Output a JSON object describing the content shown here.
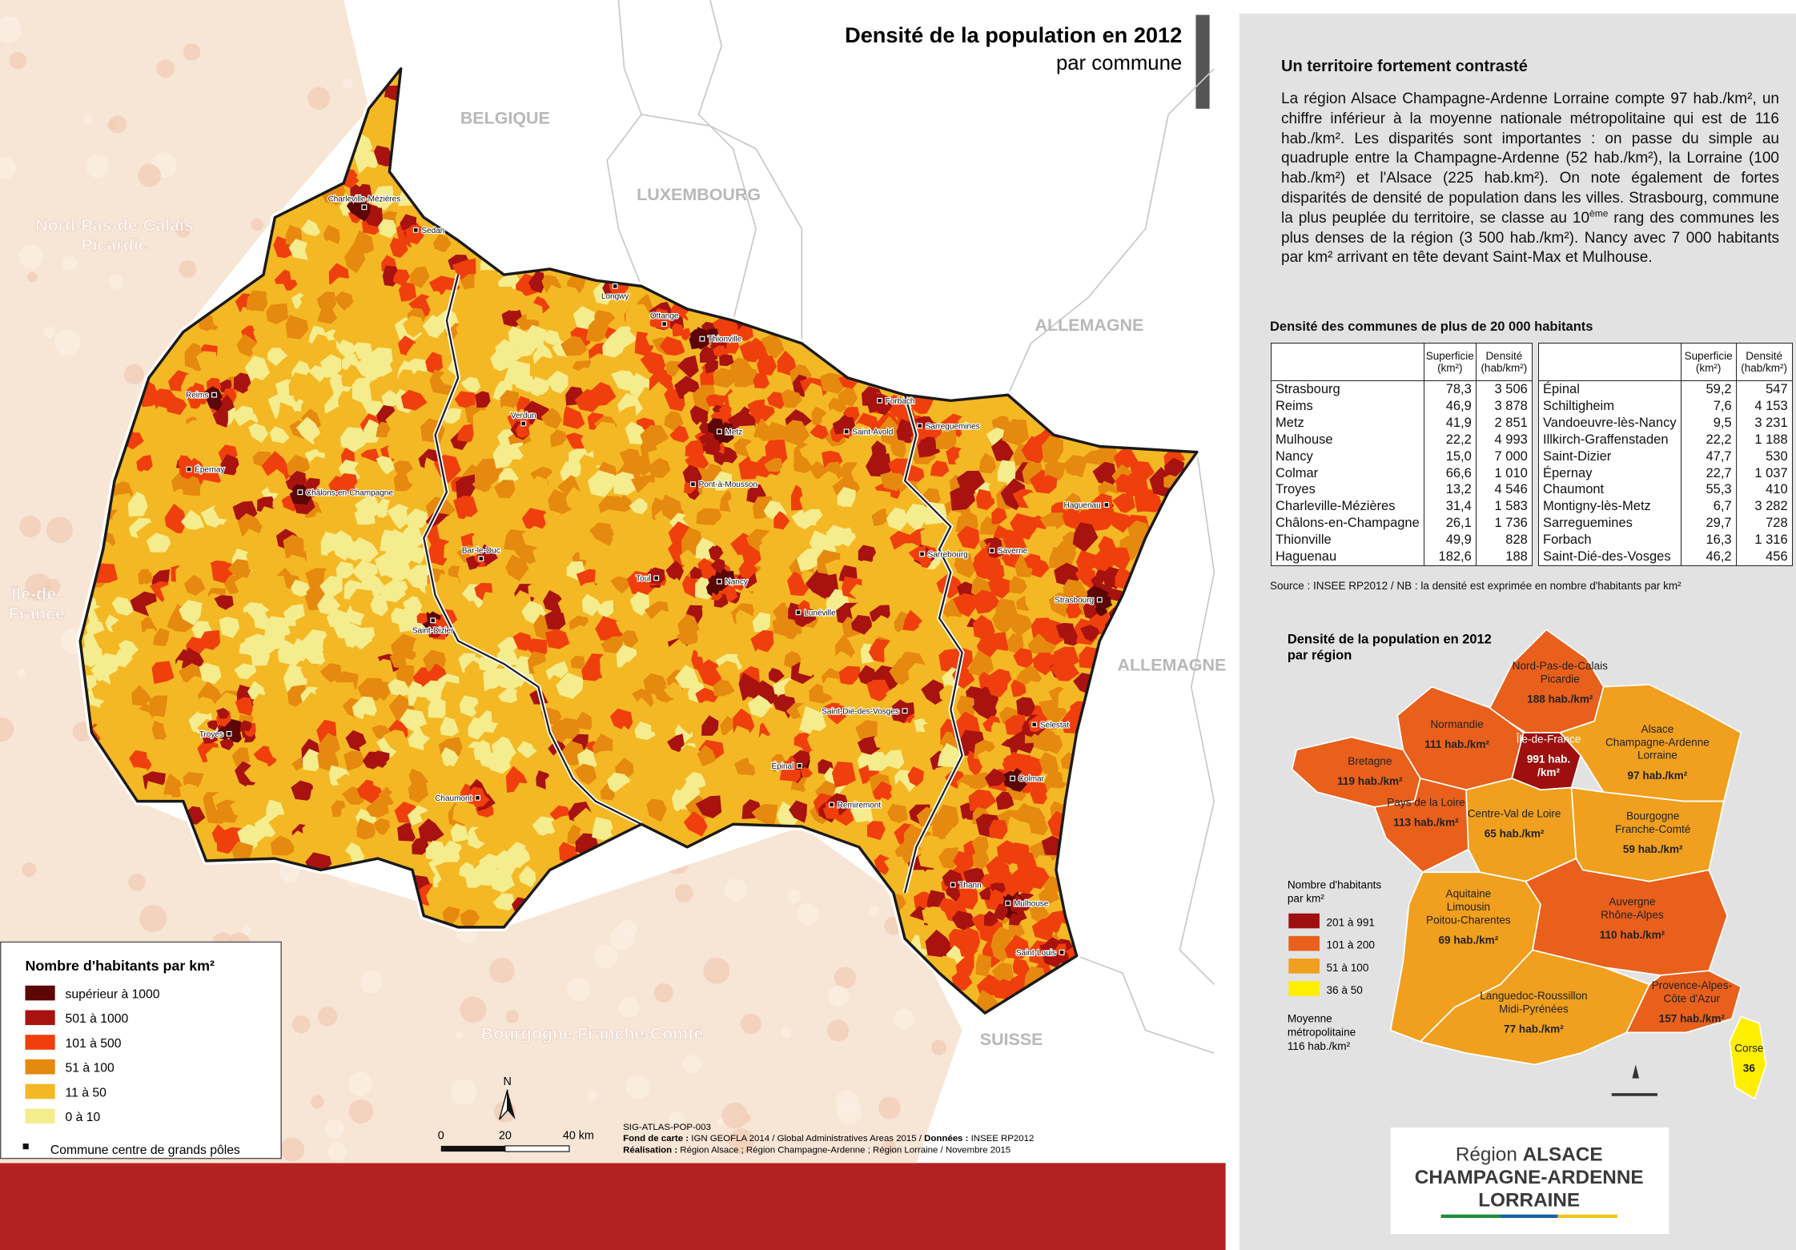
{
  "header": {
    "title": "Densité de la population en 2012",
    "subtitle": "par commune"
  },
  "map": {
    "places": [
      "BELGIQUE",
      "LUXEMBOURG",
      "ALLEMAGNE",
      "ALLEMAGNE",
      "SUISSE"
    ],
    "regions": [
      [
        "Nord-Pas-de-Calais",
        "Picardie"
      ],
      [
        "Île-de-",
        "France"
      ],
      [
        "Bourgogne Franche-Comté"
      ]
    ],
    "cities": [
      "Charleville-Mézières",
      "Sedan",
      "Longwy",
      "Ottange",
      "Thionville",
      "Reims",
      "Verdun",
      "Forbach",
      "Saint-Avold",
      "Sarreguemines",
      "Metz",
      "Épernay",
      "Châlons-en-Champagne",
      "Pont-à-Mousson",
      "Haguenau",
      "Bar-le-Duc",
      "Saverne",
      "Sarrebourg",
      "Toul",
      "Nancy",
      "Strasbourg",
      "Lunéville",
      "Saint-Dizier",
      "Saint-Dié-des-Vosges",
      "Sélestat",
      "Troyes",
      "Épinal",
      "Colmar",
      "Chaumont",
      "Remiremont",
      "Thann",
      "Mulhouse",
      "Saint-Louis"
    ],
    "legend": {
      "title": "Nombre d'habitants par km²",
      "items": [
        {
          "label": "supérieur à 1000",
          "color": "#5c0606"
        },
        {
          "label": "501  à  1000",
          "color": "#a8120f"
        },
        {
          "label": "101  à  500",
          "color": "#ef3f0c"
        },
        {
          "label": "51  à  100",
          "color": "#e6890f"
        },
        {
          "label": "11  à  50",
          "color": "#f4b824"
        },
        {
          "label": "0  à  10",
          "color": "#f5ec8e"
        }
      ],
      "pole": "Commune centre de grands pôles"
    },
    "scale": {
      "ticks": [
        0,
        20,
        "40 km"
      ],
      "north": "N"
    },
    "credits": {
      "code": "SIG-ATLAS-POP-003",
      "fond_label": "Fond de carte :",
      "fond": "IGN GEOFLA 2014 / Global Administratives Areas 2015  /",
      "donnees_label": "Données :",
      "donnees": "INSEE RP2012",
      "realisation_label": "Réalisation :",
      "realisation": "Région Alsace ; Région Champagne-Ardenne ; Région Lorraine / Novembre 2015"
    }
  },
  "panel": {
    "heading": "Un territoire fortement contrasté",
    "text_1": "La région Alsace Champagne-Ardenne Lorraine compte 97 hab./km², un chiffre inférieur à la moyenne nationale métropolitaine qui est de 116 hab./km². Les disparités sont importantes : on passe du simple au quadruple entre la Champagne-Ardenne (52 hab./km²), la Lorraine (100 hab./km²) et l'Alsace (225 hab.km²). On note également de fortes disparités de densité de population dans les villes. Strasbourg, commune la plus peuplée du territoire, se classe au 10",
    "text_sup": "ème",
    "text_2": " rang des communes les plus denses de la région (3 500 hab./km²). Nancy avec 7 000 habitants par km² arrivant en tête devant Saint-Max et Mulhouse.",
    "table_title": "Densité des communes de plus de 20 000 habitants",
    "columns": [
      "Superficie (km²)",
      "Densité (hab/km²)"
    ],
    "tables": [
      [
        [
          "Strasbourg",
          "78,3",
          "3 506"
        ],
        [
          "Reims",
          "46,9",
          "3 878"
        ],
        [
          "Metz",
          "41,9",
          "2 851"
        ],
        [
          "Mulhouse",
          "22,2",
          "4 993"
        ],
        [
          "Nancy",
          "15,0",
          "7 000"
        ],
        [
          "Colmar",
          "66,6",
          "1 010"
        ],
        [
          "Troyes",
          "13,2",
          "4 546"
        ],
        [
          "Charleville-Mézières",
          "31,4",
          "1 583"
        ],
        [
          "Châlons-en-Champagne",
          "26,1",
          "1 736"
        ],
        [
          "Thionville",
          "49,9",
          "828"
        ],
        [
          "Haguenau",
          "182,6",
          "188"
        ]
      ],
      [
        [
          "Épinal",
          "59,2",
          "547"
        ],
        [
          "Schiltigheim",
          "7,6",
          "4 153"
        ],
        [
          "Vandoeuvre-lès-Nancy",
          "9,5",
          "3 231"
        ],
        [
          "Illkirch-Graffenstaden",
          "22,2",
          "1 188"
        ],
        [
          "Saint-Dizier",
          "47,7",
          "530"
        ],
        [
          "Épernay",
          "22,7",
          "1 037"
        ],
        [
          "Chaumont",
          "55,3",
          "410"
        ],
        [
          "Montigny-lès-Metz",
          "6,7",
          "3 282"
        ],
        [
          "Sarreguemines",
          "29,7",
          "728"
        ],
        [
          "Forbach",
          "16,3",
          "1 316"
        ],
        [
          "Saint-Dié-des-Vosges",
          "46,2",
          "456"
        ]
      ]
    ],
    "source": "Source : INSEE RP2012 / NB : la densité est exprimée en nombre d'habitants par km²"
  },
  "inset": {
    "title": [
      "Densité de la population en 2012",
      "par région"
    ],
    "regions": [
      {
        "name": [
          "Nord-Pas-de-Calais",
          "Picardie"
        ],
        "value": [
          "188 hab./km²"
        ],
        "color": "#e8601c"
      },
      {
        "name": [
          "Normandie"
        ],
        "value": [
          "111 hab./km²"
        ],
        "color": "#e8601c"
      },
      {
        "name": [
          "Île-de-France"
        ],
        "value": [
          "991 hab.",
          "/km²"
        ],
        "color": "#9e0f0f"
      },
      {
        "name": [
          "Alsace",
          "Champagne-Ardenne",
          "Lorraine"
        ],
        "value": [
          "97 hab./km²"
        ],
        "color": "#f0a01e"
      },
      {
        "name": [
          "Bretagne"
        ],
        "value": [
          "119 hab./km²"
        ],
        "color": "#e8601c"
      },
      {
        "name": [
          "Pays de la Loire"
        ],
        "value": [
          "113 hab./km²"
        ],
        "color": "#e8601c"
      },
      {
        "name": [
          "Centre-Val de Loire"
        ],
        "value": [
          "65 hab./km²"
        ],
        "color": "#f0a01e"
      },
      {
        "name": [
          "Bourgogne",
          "Franche-Comté"
        ],
        "value": [
          "59 hab./km²"
        ],
        "color": "#f0a01e"
      },
      {
        "name": [
          "Aquitaine",
          "Limousin",
          "Poitou-Charentes"
        ],
        "value": [
          "69 hab./km²"
        ],
        "color": "#f0a01e"
      },
      {
        "name": [
          "Auvergne",
          "Rhône-Alpes"
        ],
        "value": [
          "110 hab./km²"
        ],
        "color": "#e8601c"
      },
      {
        "name": [
          "Languedoc-Roussillon",
          "Midi-Pyrénées"
        ],
        "value": [
          "77 hab./km²"
        ],
        "color": "#f0a01e"
      },
      {
        "name": [
          "Provence-Alpes-",
          "Côte d'Azur"
        ],
        "value": [
          "157 hab./km²"
        ],
        "color": "#e8601c"
      },
      {
        "name": [
          "Corse"
        ],
        "value": [
          "36"
        ],
        "color": "#ffee00"
      }
    ],
    "legend": {
      "title": [
        "Nombre d'habitants",
        "par km²"
      ],
      "items": [
        {
          "label": "201 à 991",
          "color": "#9e0f0f"
        },
        {
          "label": "101 à 200",
          "color": "#e8601c"
        },
        {
          "label": "51 à 100",
          "color": "#f0a01e"
        },
        {
          "label": "36 à 50",
          "color": "#ffee00"
        }
      ]
    },
    "average": [
      "Moyenne",
      "métropolitaine",
      "116 hab./km²"
    ]
  },
  "logo": {
    "line_1_a": "Région",
    "line_1_b": "ALSACE",
    "line_2": "CHAMPAGNE-ARDENNE",
    "line_3": "LORRAINE"
  }
}
